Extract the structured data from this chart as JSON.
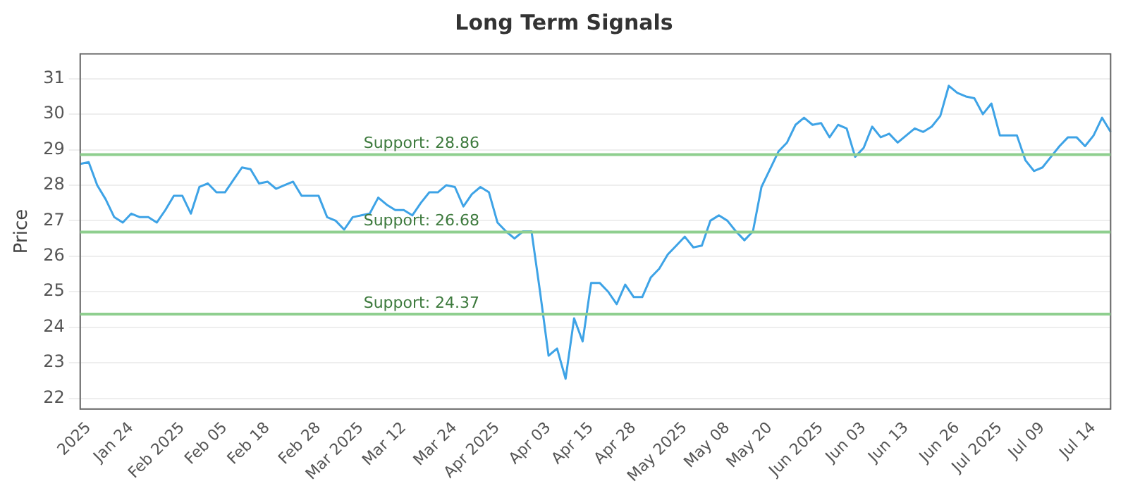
{
  "chart_data": {
    "type": "line",
    "title": "Long Term Signals",
    "ylabel": "Price",
    "categories": [
      null,
      "2025",
      null,
      null,
      null,
      null,
      "Jan 24",
      null,
      null,
      null,
      null,
      null,
      "Feb 2025",
      null,
      null,
      null,
      null,
      "Feb 05",
      null,
      null,
      null,
      null,
      "Feb 18",
      null,
      null,
      null,
      null,
      null,
      "Feb 28",
      null,
      null,
      null,
      null,
      "Mar 2025",
      null,
      null,
      null,
      null,
      "Mar 12",
      null,
      null,
      null,
      null,
      null,
      "Mar 24",
      null,
      null,
      null,
      null,
      "Apr 2025",
      null,
      null,
      null,
      null,
      null,
      "Apr 03",
      null,
      null,
      null,
      null,
      "Apr 15",
      null,
      null,
      null,
      null,
      "Apr 28",
      null,
      null,
      null,
      null,
      null,
      "May 2025",
      null,
      null,
      null,
      null,
      "May 08",
      null,
      null,
      null,
      null,
      "May 20",
      null,
      null,
      null,
      null,
      null,
      "Jun 2025",
      null,
      null,
      null,
      null,
      "Jun 03",
      null,
      null,
      null,
      null,
      "Jun 13",
      null,
      null,
      null,
      null,
      null,
      "Jun 26",
      null,
      null,
      null,
      null,
      "Jul 2025",
      null,
      null,
      null,
      null,
      "Jul 09",
      null,
      null,
      null,
      null,
      null,
      "Jul 14",
      null,
      null
    ],
    "series": [
      {
        "color": "#3ea3e6",
        "values": [
          28.6,
          28.65,
          28.0,
          27.6,
          27.1,
          26.95,
          27.2,
          27.1,
          27.1,
          26.95,
          27.3,
          27.7,
          27.7,
          27.2,
          27.95,
          28.05,
          27.8,
          27.8,
          28.15,
          28.5,
          28.45,
          28.05,
          28.1,
          27.9,
          28.0,
          28.1,
          27.7,
          27.7,
          27.7,
          27.1,
          27.0,
          26.75,
          27.1,
          27.15,
          27.2,
          27.65,
          27.45,
          27.3,
          27.3,
          27.15,
          27.5,
          27.8,
          27.8,
          28.0,
          27.95,
          27.4,
          27.75,
          27.95,
          27.8,
          26.95,
          26.7,
          26.5,
          26.7,
          26.7,
          25.0,
          23.2,
          23.4,
          22.55,
          24.25,
          23.6,
          25.25,
          25.25,
          25.0,
          24.65,
          25.2,
          24.85,
          24.85,
          25.4,
          25.65,
          26.05,
          26.3,
          26.55,
          26.25,
          26.3,
          27.0,
          27.15,
          27.0,
          26.7,
          26.45,
          26.7,
          27.95,
          28.45,
          28.95,
          29.2,
          29.7,
          29.9,
          29.7,
          29.75,
          29.35,
          29.7,
          29.6,
          28.8,
          29.05,
          29.65,
          29.35,
          29.45,
          29.2,
          29.4,
          29.6,
          29.5,
          29.65,
          29.95,
          30.8,
          30.6,
          30.5,
          30.45,
          30.0,
          30.3,
          29.4,
          29.4,
          29.4,
          28.7,
          28.4,
          28.5,
          28.8,
          29.1,
          29.35,
          29.35,
          29.1,
          29.4,
          29.9,
          29.5
        ]
      }
    ],
    "ylim": [
      21.7,
      31.7
    ],
    "yticks": [
      22,
      23,
      24,
      25,
      26,
      27,
      28,
      29,
      30,
      31
    ],
    "grid": "y",
    "legend": false,
    "marker": "none",
    "line_style": "solid",
    "ref_lines": [
      {
        "axis": "y",
        "value": 28.86,
        "label": "Support: 28.86",
        "color": "#8fcf8f"
      },
      {
        "axis": "y",
        "value": 26.68,
        "label": "Support: 26.68",
        "color": "#8fcf8f"
      },
      {
        "axis": "y",
        "value": 24.37,
        "label": "Support: 24.37",
        "color": "#8fcf8f"
      }
    ]
  }
}
